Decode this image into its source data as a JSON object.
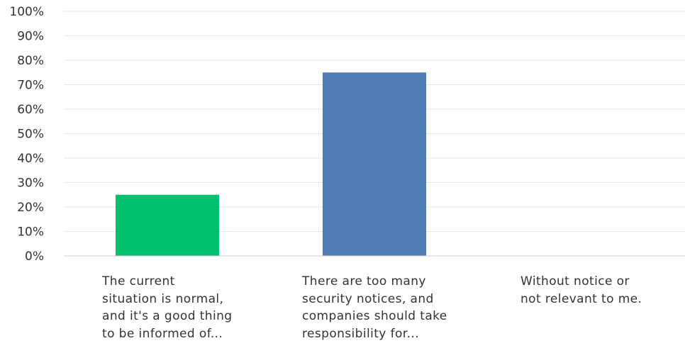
{
  "chart_data": {
    "type": "bar",
    "categories": [
      "The current\nsituation is normal,\nand it's a good thing\nto be informed of...",
      "There are too many\nsecurity notices, and\ncompanies should take\nresponsibility for...",
      "Without notice or\nnot relevant to me."
    ],
    "values": [
      25,
      75,
      0
    ],
    "colors": [
      "#00bf6f",
      "#507cb6",
      "#507cb6"
    ],
    "y_ticks": [
      "0%",
      "10%",
      "20%",
      "30%",
      "40%",
      "50%",
      "60%",
      "70%",
      "80%",
      "90%",
      "100%"
    ],
    "ylim": [
      0,
      100
    ],
    "grid": true,
    "title": "",
    "xlabel": "",
    "ylabel": ""
  }
}
